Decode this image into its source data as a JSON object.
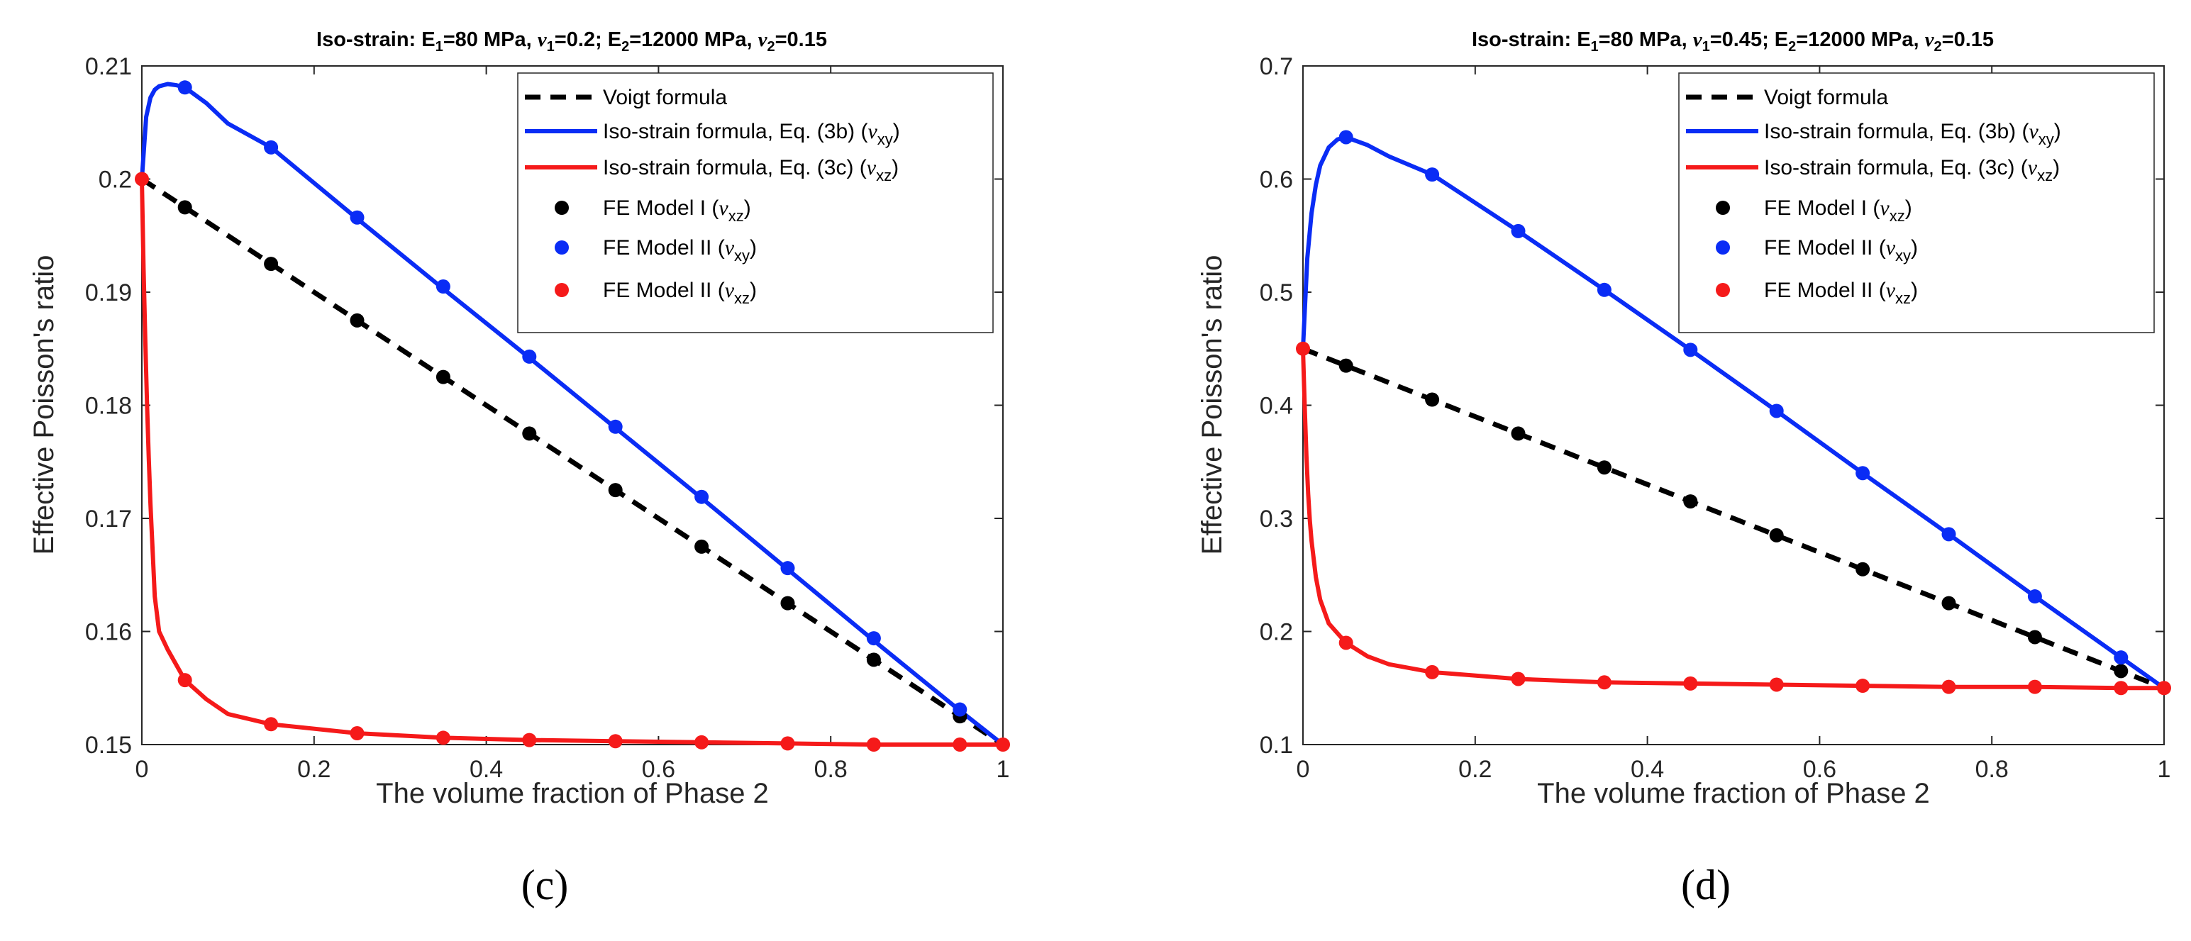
{
  "chart_data": [
    {
      "type": "line",
      "panel_label": "(c)",
      "title": "Iso-strain: E1=80 MPa, ν1=0.2; E2=12000 MPa, ν2=0.15",
      "title_parts": {
        "e1": "80 MPa",
        "nu1": "0.2",
        "e2": "12000 MPa",
        "nu2": "0.15"
      },
      "xlabel": "The volume fraction of Phase 2",
      "ylabel": "Effective Poisson's ratio",
      "xlim": [
        0,
        1
      ],
      "ylim": [
        0.15,
        0.21
      ],
      "xticks": [
        0,
        0.2,
        0.4,
        0.6,
        0.8,
        1
      ],
      "xtick_labels": [
        "0",
        "0.2",
        "0.4",
        "0.6",
        "0.8",
        "1"
      ],
      "yticks": [
        0.15,
        0.16,
        0.17,
        0.18,
        0.19,
        0.2,
        0.21
      ],
      "ytick_labels": [
        "0.15",
        "0.16",
        "0.17",
        "0.18",
        "0.19",
        "0.2",
        "0.21"
      ],
      "legend_position": "top-right",
      "lines": [
        {
          "name": "Voigt formula",
          "style": "dashed",
          "color": "#000000",
          "x": [
            0,
            1
          ],
          "y": [
            0.2,
            0.15
          ]
        },
        {
          "name": "Iso-strain formula, Eq. (3b) (νxy)",
          "style": "solid",
          "color": "#0a2cf5",
          "x": [
            0,
            0.005,
            0.01,
            0.015,
            0.02,
            0.03,
            0.04,
            0.05,
            0.075,
            0.1,
            0.15,
            0.25,
            0.35,
            0.45,
            0.55,
            0.65,
            0.75,
            0.85,
            0.95,
            1
          ],
          "y": [
            0.2,
            0.2055,
            0.2072,
            0.2079,
            0.2082,
            0.2084,
            0.2083,
            0.2081,
            0.2067,
            0.2049,
            0.2028,
            0.1965,
            0.1903,
            0.1842,
            0.178,
            0.1718,
            0.1655,
            0.1592,
            0.153,
            0.15
          ]
        },
        {
          "name": "Iso-strain formula, Eq. (3c) (νxz)",
          "style": "solid",
          "color": "#f51a1a",
          "x": [
            0,
            0.002,
            0.004,
            0.006,
            0.008,
            0.01,
            0.015,
            0.02,
            0.03,
            0.05,
            0.075,
            0.1,
            0.15,
            0.25,
            0.35,
            0.45,
            0.55,
            0.65,
            0.75,
            0.85,
            0.95,
            1
          ],
          "y": [
            0.2,
            0.1921,
            0.1856,
            0.1801,
            0.1754,
            0.1713,
            0.1631,
            0.16,
            0.1584,
            0.1557,
            0.154,
            0.1527,
            0.1518,
            0.151,
            0.1506,
            0.1504,
            0.1503,
            0.1502,
            0.1501,
            0.15,
            0.15,
            0.15
          ]
        }
      ],
      "points": [
        {
          "name": "FE Model I (νxz)",
          "color": "#000000",
          "x": [
            0.05,
            0.15,
            0.25,
            0.35,
            0.45,
            0.55,
            0.65,
            0.75,
            0.85,
            0.95
          ],
          "y": [
            0.1975,
            0.1925,
            0.1875,
            0.1825,
            0.1775,
            0.1725,
            0.1675,
            0.1625,
            0.1575,
            0.1525
          ]
        },
        {
          "name": "FE Model II (νxy)",
          "color": "#0a2cf5",
          "x": [
            0.05,
            0.15,
            0.25,
            0.35,
            0.45,
            0.55,
            0.65,
            0.75,
            0.85,
            0.95
          ],
          "y": [
            0.2081,
            0.2028,
            0.1966,
            0.1905,
            0.1843,
            0.1781,
            0.1719,
            0.1656,
            0.1594,
            0.1531
          ]
        },
        {
          "name": "FE Model II (νxz)",
          "color": "#f51a1a",
          "x": [
            0,
            0.05,
            0.15,
            0.25,
            0.35,
            0.45,
            0.55,
            0.65,
            0.75,
            0.85,
            0.95,
            1
          ],
          "y": [
            0.2,
            0.1557,
            0.1518,
            0.151,
            0.1506,
            0.1504,
            0.1503,
            0.1502,
            0.1501,
            0.15,
            0.15,
            0.15
          ]
        }
      ]
    },
    {
      "type": "line",
      "panel_label": "(d)",
      "title": "Iso-strain: E1=80 MPa, ν1=0.45; E2=12000 MPa, ν2=0.15",
      "title_parts": {
        "e1": "80 MPa",
        "nu1": "0.45",
        "e2": "12000 MPa",
        "nu2": "0.15"
      },
      "xlabel": "The volume fraction of Phase 2",
      "ylabel": "Effective Poisson's ratio",
      "xlim": [
        0,
        1
      ],
      "ylim": [
        0.1,
        0.7
      ],
      "xticks": [
        0,
        0.2,
        0.4,
        0.6,
        0.8,
        1
      ],
      "xtick_labels": [
        "0",
        "0.2",
        "0.4",
        "0.6",
        "0.8",
        "1"
      ],
      "yticks": [
        0.1,
        0.2,
        0.3,
        0.4,
        0.5,
        0.6,
        0.7
      ],
      "ytick_labels": [
        "0.1",
        "0.2",
        "0.3",
        "0.4",
        "0.5",
        "0.6",
        "0.7"
      ],
      "legend_position": "top-right",
      "lines": [
        {
          "name": "Voigt formula",
          "style": "dashed",
          "color": "#000000",
          "x": [
            0,
            1
          ],
          "y": [
            0.45,
            0.15
          ]
        },
        {
          "name": "Iso-strain formula, Eq. (3b) (νxy)",
          "style": "solid",
          "color": "#0a2cf5",
          "x": [
            0,
            0.005,
            0.01,
            0.015,
            0.02,
            0.03,
            0.04,
            0.05,
            0.075,
            0.1,
            0.15,
            0.25,
            0.35,
            0.45,
            0.55,
            0.65,
            0.75,
            0.85,
            0.95,
            1
          ],
          "y": [
            0.45,
            0.53,
            0.57,
            0.595,
            0.612,
            0.628,
            0.635,
            0.637,
            0.63,
            0.62,
            0.604,
            0.554,
            0.502,
            0.449,
            0.395,
            0.34,
            0.286,
            0.231,
            0.177,
            0.15
          ]
        },
        {
          "name": "Iso-strain formula, Eq. (3c) (νxz)",
          "style": "solid",
          "color": "#f51a1a",
          "x": [
            0,
            0.002,
            0.004,
            0.006,
            0.008,
            0.01,
            0.015,
            0.02,
            0.03,
            0.05,
            0.075,
            0.1,
            0.15,
            0.25,
            0.35,
            0.45,
            0.55,
            0.65,
            0.75,
            0.85,
            0.95,
            1
          ],
          "y": [
            0.45,
            0.4,
            0.355,
            0.322,
            0.298,
            0.28,
            0.248,
            0.228,
            0.207,
            0.19,
            0.178,
            0.171,
            0.164,
            0.158,
            0.155,
            0.154,
            0.153,
            0.152,
            0.151,
            0.151,
            0.15,
            0.15
          ]
        }
      ],
      "points": [
        {
          "name": "FE Model I (νxz)",
          "color": "#000000",
          "x": [
            0.05,
            0.15,
            0.25,
            0.35,
            0.45,
            0.55,
            0.65,
            0.75,
            0.85,
            0.95
          ],
          "y": [
            0.435,
            0.405,
            0.375,
            0.345,
            0.315,
            0.285,
            0.255,
            0.225,
            0.195,
            0.165
          ]
        },
        {
          "name": "FE Model II (νxy)",
          "color": "#0a2cf5",
          "x": [
            0.05,
            0.15,
            0.25,
            0.35,
            0.45,
            0.55,
            0.65,
            0.75,
            0.85,
            0.95
          ],
          "y": [
            0.637,
            0.604,
            0.554,
            0.502,
            0.449,
            0.395,
            0.34,
            0.286,
            0.231,
            0.177
          ]
        },
        {
          "name": "FE Model II (νxz)",
          "color": "#f51a1a",
          "x": [
            0,
            0.05,
            0.15,
            0.25,
            0.35,
            0.45,
            0.55,
            0.65,
            0.75,
            0.85,
            0.95,
            1
          ],
          "y": [
            0.45,
            0.19,
            0.164,
            0.158,
            0.155,
            0.154,
            0.153,
            0.152,
            0.151,
            0.151,
            0.15,
            0.15
          ]
        }
      ]
    }
  ]
}
